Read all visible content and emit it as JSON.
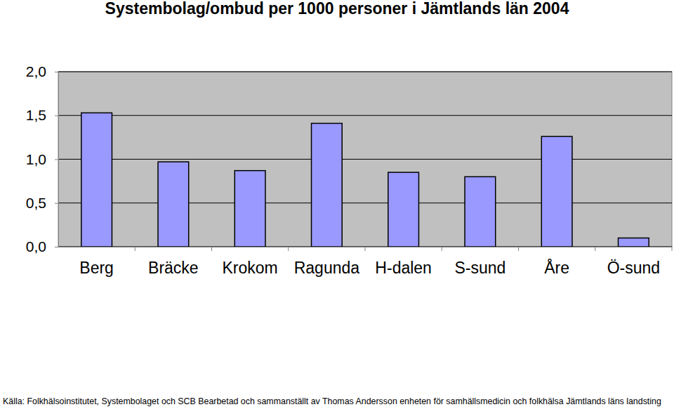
{
  "chart_data": {
    "type": "bar",
    "title": "Systembolag/ombud per 1000 personer i Jämtlands län 2004",
    "categories": [
      "Berg",
      "Bräcke",
      "Krokom",
      "Ragunda",
      "H-dalen",
      "S-sund",
      "Åre",
      "Ö-sund"
    ],
    "values": [
      1.53,
      0.97,
      0.87,
      1.41,
      0.85,
      0.8,
      1.26,
      0.1
    ],
    "color": "#9999ff",
    "ylim": [
      0,
      2
    ],
    "yticks": [
      {
        "value": 0,
        "label": "0,0"
      },
      {
        "value": 0.5,
        "label": "0,5"
      },
      {
        "value": 1,
        "label": "1,0"
      },
      {
        "value": 1.5,
        "label": "1,5"
      },
      {
        "value": 2,
        "label": "2,0"
      }
    ],
    "grid": true,
    "source": "Källa: Folkhälsoinstitutet, Systembolaget och SCB  Bearbetad och sammanställt av Thomas Andersson enheten för samhällsmedicin och folkhälsa Jämtlands läns landsting"
  }
}
